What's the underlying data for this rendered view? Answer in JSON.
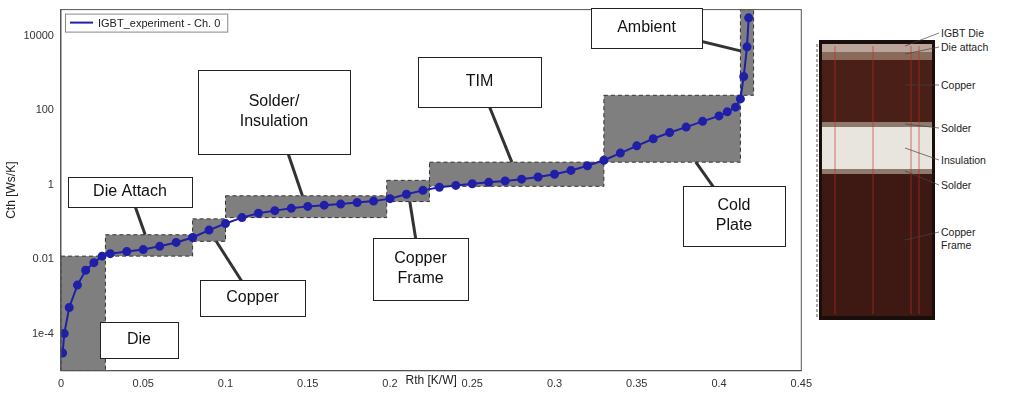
{
  "chart_data": {
    "type": "line",
    "x_label": "Rth [K/W]",
    "y_label": "Cth [Ws/K]",
    "log": "y",
    "grid": false,
    "legend": "top-left",
    "xlim": [
      0,
      0.45
    ],
    "xticks": [
      0,
      0.05,
      0.1,
      0.15,
      0.2,
      0.25,
      0.3,
      0.35,
      0.4,
      0.45
    ],
    "ylim": [
      1e-05,
      50000
    ],
    "yticks": [
      {
        "value": 0.0001,
        "label": "1e-4"
      },
      0.01,
      1,
      100,
      10000
    ],
    "x": [
      0.001,
      0.002,
      0.005,
      0.01,
      0.015,
      0.02,
      0.025,
      0.03,
      0.04,
      0.05,
      0.06,
      0.07,
      0.08,
      0.09,
      0.1,
      0.11,
      0.12,
      0.13,
      0.14,
      0.15,
      0.16,
      0.17,
      0.18,
      0.19,
      0.2,
      0.21,
      0.22,
      0.23,
      0.24,
      0.25,
      0.26,
      0.27,
      0.28,
      0.29,
      0.3,
      0.31,
      0.32,
      0.33,
      0.34,
      0.35,
      0.36,
      0.37,
      0.38,
      0.39,
      0.4,
      0.405,
      0.41,
      0.413,
      0.415,
      0.417,
      0.418
    ],
    "series": [
      {
        "name": "IGBT_experiment - Ch. 0",
        "color": "#1f1fa8",
        "marker": "circle",
        "line_style": "solid",
        "values": [
          3e-05,
          0.0001,
          0.0005,
          0.002,
          0.005,
          0.008,
          0.012,
          0.014,
          0.016,
          0.018,
          0.022,
          0.028,
          0.038,
          0.06,
          0.09,
          0.13,
          0.17,
          0.2,
          0.23,
          0.26,
          0.28,
          0.3,
          0.33,
          0.36,
          0.42,
          0.55,
          0.7,
          0.85,
          0.95,
          1.05,
          1.15,
          1.25,
          1.4,
          1.6,
          1.9,
          2.4,
          3.2,
          4.5,
          7,
          11,
          17,
          25,
          35,
          50,
          70,
          90,
          120,
          200,
          800,
          5000,
          30000
        ]
      }
    ],
    "regions": [
      {
        "label": "Die",
        "xlim": [
          0,
          0.027
        ],
        "ylim": [
          1e-05,
          0.012
        ],
        "color": "#7f7f7f"
      },
      {
        "label": "Die Attach",
        "xlim": [
          0.027,
          0.08
        ],
        "ylim": [
          0.012,
          0.045
        ],
        "color": "#7f7f7f"
      },
      {
        "label": "Copper",
        "xlim": [
          0.08,
          0.1
        ],
        "ylim": [
          0.03,
          0.12
        ],
        "color": "#7f7f7f"
      },
      {
        "label": "Solder/\nInsulation",
        "xlim": [
          0.1,
          0.198
        ],
        "ylim": [
          0.13,
          0.5
        ],
        "color": "#7f7f7f"
      },
      {
        "label": "Copper\nFrame",
        "xlim": [
          0.198,
          0.224
        ],
        "ylim": [
          0.35,
          1.3
        ],
        "color": "#7f7f7f"
      },
      {
        "label": "TIM",
        "xlim": [
          0.224,
          0.33
        ],
        "ylim": [
          0.9,
          4
        ],
        "color": "#7f7f7f"
      },
      {
        "label": "Cold\nPlate",
        "xlim": [
          0.33,
          0.413
        ],
        "ylim": [
          4,
          250
        ],
        "color": "#7f7f7f"
      },
      {
        "label": "Ambient",
        "xlim": [
          0.413,
          0.421
        ],
        "ylim": [
          250,
          50000
        ],
        "color": "#7f7f7f"
      }
    ]
  },
  "photo": {
    "labels": [
      "IGBT Die",
      "Die attach",
      "Copper",
      "Solder",
      "Insulation",
      "Solder",
      "Copper\nFrame"
    ]
  }
}
